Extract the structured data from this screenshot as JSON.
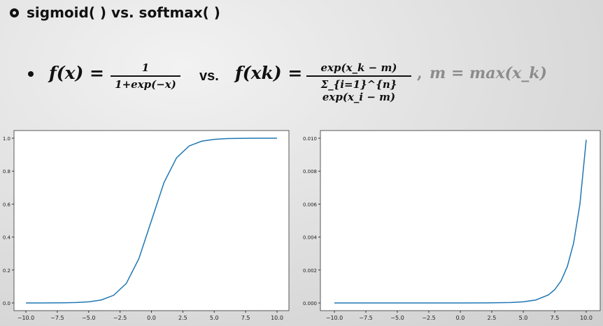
{
  "heading": "sigmoid( ) vs. softmax( )",
  "formula": {
    "lhs1": "f(x) =",
    "frac1_num": "1",
    "frac1_den": "1+exp(−x)",
    "vs": "vs.",
    "lhs2": "f(xk) =",
    "frac2_num": "exp(x_k − m)",
    "frac2_den": "Σ_{i=1}^{n} exp(x_i − m)",
    "comma": ",",
    "rhs": "m = max(x_k)"
  },
  "colors": {
    "line": "#1f77b4"
  },
  "chart_data": [
    {
      "type": "line",
      "xlim": [
        -10,
        10
      ],
      "ylim": [
        0,
        1
      ],
      "x_ticks": [
        "−10.0",
        "−7.5",
        "−5.0",
        "−2.5",
        "0.0",
        "2.5",
        "5.0",
        "7.5",
        "10.0"
      ],
      "y_ticks": [
        "0.0",
        "0.2",
        "0.4",
        "0.6",
        "0.8",
        "1.0"
      ],
      "x": [
        -10,
        -9,
        -8,
        -7,
        -6,
        -5,
        -4,
        -3,
        -2,
        -1,
        0,
        1,
        2,
        3,
        4,
        5,
        6,
        7,
        8,
        9,
        10
      ],
      "y": [
        0.0,
        0.0001,
        0.0003,
        0.0009,
        0.0025,
        0.0067,
        0.018,
        0.047,
        0.119,
        0.269,
        0.5,
        0.731,
        0.881,
        0.953,
        0.982,
        0.993,
        0.998,
        0.999,
        1.0,
        1.0,
        1.0
      ]
    },
    {
      "type": "line",
      "xlim": [
        -10,
        10
      ],
      "ylim": [
        0,
        0.01
      ],
      "x_ticks": [
        "−10.0",
        "−7.5",
        "−5.0",
        "−2.5",
        "0.0",
        "2.5",
        "5.0",
        "7.5",
        "10.0"
      ],
      "y_ticks": [
        "0.000",
        "0.002",
        "0.004",
        "0.006",
        "0.008",
        "0.010"
      ],
      "x": [
        -10,
        -8,
        -6,
        -4,
        -2,
        0,
        2,
        4,
        5,
        6,
        7,
        7.5,
        8,
        8.5,
        9,
        9.5,
        10
      ],
      "y": [
        0.0,
        0.0,
        0.0,
        0.0,
        0.0,
        0.0,
        3e-06,
        2.4e-05,
        6.7e-05,
        0.00018,
        0.00049,
        0.00081,
        0.00134,
        0.00221,
        0.00364,
        0.006,
        0.0099
      ]
    }
  ]
}
